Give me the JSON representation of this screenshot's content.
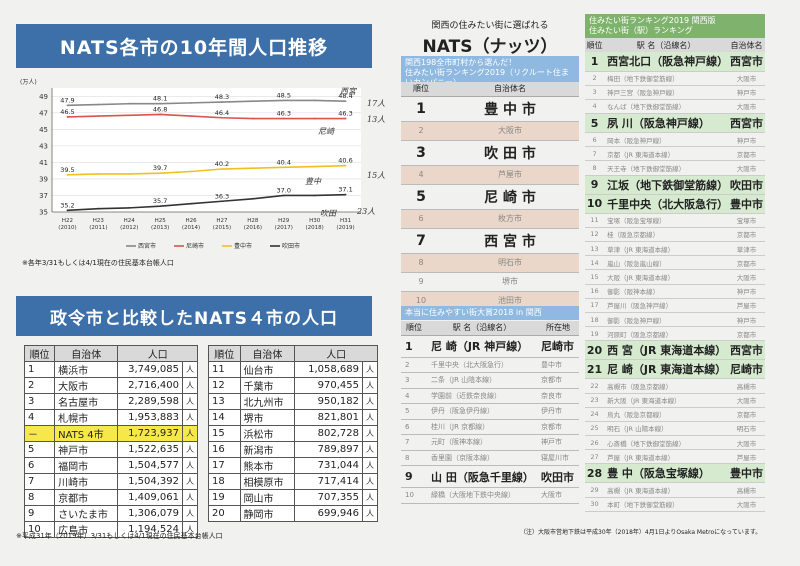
{
  "left": {
    "chart_title": "NATS各市の10年間人口推移",
    "chart_note": "※各年3/31もしくは4/1現在の住民基本台帳人口",
    "table_title": "政令市と比較したNATS４市の人口",
    "table_note": "※平成31年（2019年）3/31もしくは4/1現在の住民基本台帳人口",
    "table_headers": [
      "順位",
      "自治体",
      "人口"
    ],
    "unit": "人",
    "table_a": [
      {
        "rank": "1",
        "city": "横浜市",
        "pop": "3,749,085"
      },
      {
        "rank": "2",
        "city": "大阪市",
        "pop": "2,716,400"
      },
      {
        "rank": "3",
        "city": "名古屋市",
        "pop": "2,289,598"
      },
      {
        "rank": "4",
        "city": "札幌市",
        "pop": "1,953,883"
      },
      {
        "rank": "－",
        "city": "NATS 4市",
        "pop": "1,723,937"
      },
      {
        "rank": "5",
        "city": "神戸市",
        "pop": "1,522,635"
      },
      {
        "rank": "6",
        "city": "福岡市",
        "pop": "1,504,577"
      },
      {
        "rank": "7",
        "city": "川崎市",
        "pop": "1,504,392"
      },
      {
        "rank": "8",
        "city": "京都市",
        "pop": "1,409,061"
      },
      {
        "rank": "9",
        "city": "さいたま市",
        "pop": "1,306,079"
      },
      {
        "rank": "10",
        "city": "広島市",
        "pop": "1,194,524"
      }
    ],
    "table_b": [
      {
        "rank": "11",
        "city": "仙台市",
        "pop": "1,058,689"
      },
      {
        "rank": "12",
        "city": "千葉市",
        "pop": "970,455"
      },
      {
        "rank": "13",
        "city": "北九州市",
        "pop": "950,182"
      },
      {
        "rank": "14",
        "city": "堺市",
        "pop": "821,801"
      },
      {
        "rank": "15",
        "city": "浜松市",
        "pop": "802,728"
      },
      {
        "rank": "16",
        "city": "新潟市",
        "pop": "789,897"
      },
      {
        "rank": "17",
        "city": "熊本市",
        "pop": "731,044"
      },
      {
        "rank": "18",
        "city": "相模原市",
        "pop": "717,414"
      },
      {
        "rank": "19",
        "city": "岡山市",
        "pop": "707,355"
      },
      {
        "rank": "20",
        "city": "静岡市",
        "pop": "699,946"
      }
    ],
    "hand_notes": [
      "西宮",
      "尼崎",
      "豊中",
      "吹田",
      "17人",
      "13人",
      "15人",
      "23人"
    ]
  },
  "chart_data": {
    "type": "line",
    "ylabel": "(万人)",
    "ylim": [
      35,
      50
    ],
    "yticks": [
      35,
      37,
      39,
      41,
      43,
      45,
      47,
      49
    ],
    "x": [
      "H22\n(2010)",
      "H23\n(2011)",
      "H24\n(2012)",
      "H25\n(2013)",
      "H26\n(2014)",
      "H27\n(2015)",
      "H28\n(2016)",
      "H29\n(2017)",
      "H30\n(2018)",
      "H31\n(2019)"
    ],
    "series": [
      {
        "name": "西宮市",
        "color": "#888888",
        "values": [
          47.9,
          48.0,
          48.1,
          48.1,
          48.2,
          48.3,
          48.4,
          48.5,
          48.5,
          48.4
        ],
        "labels": [
          "47.9",
          "",
          "",
          "48.1",
          "",
          "48.3",
          "",
          "48.5",
          "",
          "48.4"
        ]
      },
      {
        "name": "尼崎市",
        "color": "#d9534f",
        "values": [
          46.5,
          46.6,
          46.7,
          46.8,
          46.6,
          46.4,
          46.3,
          46.3,
          46.3,
          46.3
        ],
        "labels": [
          "46.5",
          "",
          "",
          "46.8",
          "",
          "46.4",
          "",
          "46.3",
          "",
          "46.3"
        ]
      },
      {
        "name": "豊中市",
        "color": "#f0c020",
        "values": [
          39.5,
          39.6,
          39.6,
          39.7,
          39.9,
          40.2,
          40.3,
          40.4,
          40.5,
          40.6
        ],
        "labels": [
          "39.5",
          "",
          "",
          "39.7",
          "",
          "40.2",
          "",
          "40.4",
          "",
          "40.6"
        ]
      },
      {
        "name": "吹田市",
        "color": "#333333",
        "values": [
          35.2,
          35.4,
          35.5,
          35.7,
          36.0,
          36.3,
          36.6,
          37.0,
          37.0,
          37.1
        ],
        "labels": [
          "35.2",
          "",
          "",
          "35.7",
          "",
          "36.3",
          "",
          "37.0",
          "",
          "37.1"
        ]
      }
    ],
    "legend": "bottom"
  },
  "middle": {
    "pre_title": "関西の住みたい街に選ばれる",
    "title": "NATS（ナッツ）",
    "banner1_a": "関西198全市町村から選んだ！",
    "banner1_b": "住みたい街ランキング2019（リクルート住まいカンパニー）",
    "headers": [
      "順位",
      "自治体名"
    ],
    "rank1": [
      {
        "rank": "1",
        "name": "豊 中 市",
        "big": true
      },
      {
        "rank": "2",
        "name": "大阪市",
        "big": false
      },
      {
        "rank": "3",
        "name": "吹 田 市",
        "big": true
      },
      {
        "rank": "4",
        "name": "芦屋市",
        "big": false
      },
      {
        "rank": "5",
        "name": "尼 崎 市",
        "big": true
      },
      {
        "rank": "6",
        "name": "枚方市",
        "big": false
      },
      {
        "rank": "7",
        "name": "西 宮 市",
        "big": true
      },
      {
        "rank": "8",
        "name": "明石市",
        "big": false
      },
      {
        "rank": "9",
        "name": "堺市",
        "big": false
      },
      {
        "rank": "10",
        "name": "池田市",
        "big": false
      }
    ],
    "banner2": "本当に住みやすい街大賞2018 in 関西",
    "headers2": [
      "順位",
      "駅 名（沿線名）",
      "所在地"
    ],
    "rank2": [
      {
        "rank": "1",
        "name": "尼 崎（JR 神戸線）",
        "city": "尼崎市",
        "big": true
      },
      {
        "rank": "2",
        "name": "千里中央（北大阪急行）",
        "city": "豊中市",
        "big": false
      },
      {
        "rank": "3",
        "name": "二条（JR 山陰本線）",
        "city": "京都市",
        "big": false
      },
      {
        "rank": "4",
        "name": "学園前（近鉄奈良線）",
        "city": "奈良市",
        "big": false
      },
      {
        "rank": "5",
        "name": "伊丹（阪急伊丹線）",
        "city": "伊丹市",
        "big": false
      },
      {
        "rank": "6",
        "name": "桂川（JR 京都線）",
        "city": "京都市",
        "big": false
      },
      {
        "rank": "7",
        "name": "元町（阪神本線）",
        "city": "神戸市",
        "big": false
      },
      {
        "rank": "8",
        "name": "香里園（京阪本線）",
        "city": "寝屋川市",
        "big": false
      },
      {
        "rank": "9",
        "name": "山 田（阪急千里線）",
        "city": "吹田市",
        "big": true
      },
      {
        "rank": "10",
        "name": "緑橋（大阪地下鉄中央線）",
        "city": "大阪市",
        "big": false
      }
    ],
    "note": "（注）大阪市営地下鉄は平成30年（2018年）4月1日よりOsaka Metroになっています。"
  },
  "right": {
    "banner_a": "住みたい街ランキング2019 関西版",
    "banner_b": "住みたい街（駅）ランキング",
    "headers": [
      "順位",
      "駅 名（沿線名）",
      "自治体名"
    ],
    "rows": [
      {
        "rank": "1",
        "name": "西宮北口（阪急神戸線）",
        "city": "西宮市",
        "big": true
      },
      {
        "rank": "2",
        "name": "梅田（地下鉄御堂筋線）",
        "city": "大阪市",
        "big": false
      },
      {
        "rank": "3",
        "name": "神戸三宮（阪急神戸線）",
        "city": "神戸市",
        "big": false
      },
      {
        "rank": "4",
        "name": "なんば（地下鉄御堂筋線）",
        "city": "大阪市",
        "big": false
      },
      {
        "rank": "5",
        "name": "夙 川（阪急神戸線）",
        "city": "西宮市",
        "big": true
      },
      {
        "rank": "6",
        "name": "岡本（阪急神戸線）",
        "city": "神戸市",
        "big": false
      },
      {
        "rank": "7",
        "name": "京都（JR 東海道本線）",
        "city": "京都市",
        "big": false
      },
      {
        "rank": "8",
        "name": "天王寺（地下鉄御堂筋線）",
        "city": "大阪市",
        "big": false
      },
      {
        "rank": "9",
        "name": "江坂（地下鉄御堂筋線）",
        "city": "吹田市",
        "big": true
      },
      {
        "rank": "10",
        "name": "千里中央（北大阪急行）",
        "city": "豊中市",
        "big": true
      },
      {
        "rank": "11",
        "name": "宝塚（阪急宝塚線）",
        "city": "宝塚市",
        "big": false
      },
      {
        "rank": "12",
        "name": "桂（阪急京都線）",
        "city": "京都市",
        "big": false
      },
      {
        "rank": "13",
        "name": "草津（JR 東海道本線）",
        "city": "草津市",
        "big": false
      },
      {
        "rank": "14",
        "name": "嵐山（阪急嵐山線）",
        "city": "京都市",
        "big": false
      },
      {
        "rank": "15",
        "name": "大阪（JR 東海道本線）",
        "city": "大阪市",
        "big": false
      },
      {
        "rank": "16",
        "name": "御影（阪神本線）",
        "city": "神戸市",
        "big": false
      },
      {
        "rank": "17",
        "name": "芦屋川（阪急神戸線）",
        "city": "芦屋市",
        "big": false
      },
      {
        "rank": "18",
        "name": "御影（阪急神戸線）",
        "city": "神戸市",
        "big": false
      },
      {
        "rank": "19",
        "name": "河原町（阪急京都線）",
        "city": "京都市",
        "big": false
      },
      {
        "rank": "20",
        "name": "西 宮（JR 東海道本線）",
        "city": "西宮市",
        "big": true
      },
      {
        "rank": "21",
        "name": "尼 崎（JR 東海道本線）",
        "city": "尼崎市",
        "big": true
      },
      {
        "rank": "22",
        "name": "高槻市（阪急京都線）",
        "city": "高槻市",
        "big": false
      },
      {
        "rank": "23",
        "name": "新大阪（JR 東海道本線）",
        "city": "大阪市",
        "big": false
      },
      {
        "rank": "24",
        "name": "烏丸（阪急京都線）",
        "city": "京都市",
        "big": false
      },
      {
        "rank": "25",
        "name": "明石（JR 山陽本線）",
        "city": "明石市",
        "big": false
      },
      {
        "rank": "26",
        "name": "心斎橋（地下鉄御堂筋線）",
        "city": "大阪市",
        "big": false
      },
      {
        "rank": "27",
        "name": "芦屋（JR 東海道本線）",
        "city": "芦屋市",
        "big": false
      },
      {
        "rank": "28",
        "name": "豊 中（阪急宝塚線）",
        "city": "豊中市",
        "big": true
      },
      {
        "rank": "29",
        "name": "高槻（JR 東海道本線）",
        "city": "高槻市",
        "big": false
      },
      {
        "rank": "30",
        "name": "本町（地下鉄御堂筋線）",
        "city": "大阪市",
        "big": false
      }
    ]
  }
}
